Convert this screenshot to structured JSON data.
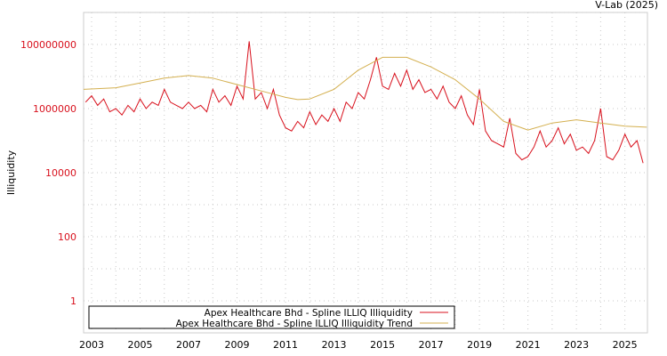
{
  "source_label": "V-Lab (2025)",
  "colors": {
    "series": "#d8101c",
    "trend": "#d4b050",
    "ytick": "#d8101c"
  },
  "chart_data": {
    "type": "line",
    "title": "",
    "xlabel": "",
    "ylabel": "Illiquidity",
    "yscale": "log",
    "xlim": [
      2002.67,
      2025.93
    ],
    "ylim": [
      0.1,
      1000000000
    ],
    "grid": true,
    "legend_position": "bottom-left",
    "x_ticks": [
      "2003",
      "2005",
      "2007",
      "2009",
      "2011",
      "2013",
      "2015",
      "2017",
      "2019",
      "2021",
      "2023",
      "2025"
    ],
    "y_ticks": [
      "100000000",
      "1000000",
      "10000",
      "100",
      "1"
    ],
    "series": [
      {
        "name": "Apex Healthcare Bhd - Spline ILLIQ Illiquidity",
        "x_start": 2002.75,
        "x_step": 0.25,
        "values": [
          1580000,
          2510000,
          1260000,
          2000000,
          794000,
          1000000,
          631000,
          1260000,
          794000,
          2000000,
          1000000,
          1580000,
          1260000,
          3980000,
          1580000,
          1260000,
          1000000,
          1580000,
          1000000,
          1260000,
          794000,
          3980000,
          1580000,
          2510000,
          1260000,
          5010000,
          2000000,
          126000000,
          2000000,
          3160000,
          1000000,
          3980000,
          631000,
          251000,
          200000,
          398000,
          251000,
          794000,
          316000,
          631000,
          398000,
          1000000,
          398000,
          1580000,
          1000000,
          3160000,
          2000000,
          7940000,
          39800000,
          5010000,
          3980000,
          12600000,
          5010000,
          15800000,
          3980000,
          7940000,
          3160000,
          3980000,
          2000000,
          5010000,
          1580000,
          1000000,
          2510000,
          631000,
          316000,
          3980000,
          200000,
          100000,
          79400,
          63100,
          501000,
          39800,
          25100,
          31600,
          63100,
          200000,
          63100,
          100000,
          251000,
          79400,
          158000,
          50100,
          63100,
          39800,
          100000,
          1000000,
          31600,
          25100,
          50100,
          158000,
          63100,
          100000,
          20000
        ]
      },
      {
        "name": "Apex Healthcare Bhd - Spline ILLIQ Illiquidity Trend",
        "x": [
          2002.67,
          2004,
          2005,
          2006,
          2007,
          2008,
          2009,
          2010,
          2011,
          2011.5,
          2012,
          2013,
          2014,
          2015,
          2016,
          2017,
          2018,
          2019,
          2020,
          2021,
          2022,
          2023,
          2024,
          2025,
          2025.9
        ],
        "values": [
          3980000,
          4470000,
          6310000,
          8910000,
          10700000,
          8910000,
          5620000,
          3550000,
          2240000,
          1910000,
          2000000,
          3980000,
          15800000,
          39800000,
          39800000,
          20000000,
          7940000,
          2000000,
          398000,
          214000,
          355000,
          447000,
          355000,
          282000,
          263000
        ]
      }
    ]
  }
}
